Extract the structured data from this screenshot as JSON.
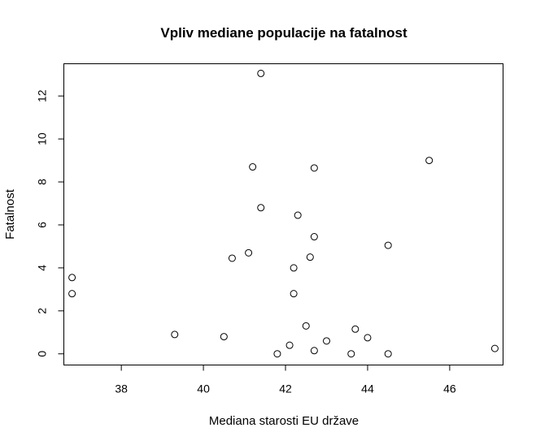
{
  "chart_data": {
    "type": "scatter",
    "title": "Vpliv mediane populacije na fatalnost",
    "xlabel": "Mediana starosti EU države",
    "ylabel": "Fatalnost",
    "xlim": [
      36.6,
      47.3
    ],
    "ylim": [
      -0.52,
      13.5
    ],
    "grid": false,
    "marker": "open-circle",
    "x_ticks": [
      38,
      40,
      42,
      44,
      46
    ],
    "y_ticks": [
      0,
      2,
      4,
      6,
      8,
      10,
      12
    ],
    "points": [
      {
        "x": 36.8,
        "y": 3.55
      },
      {
        "x": 36.8,
        "y": 2.8
      },
      {
        "x": 39.3,
        "y": 0.9
      },
      {
        "x": 40.5,
        "y": 0.8
      },
      {
        "x": 40.7,
        "y": 4.45
      },
      {
        "x": 41.1,
        "y": 4.7
      },
      {
        "x": 41.2,
        "y": 8.7
      },
      {
        "x": 41.4,
        "y": 13.05
      },
      {
        "x": 41.4,
        "y": 6.8
      },
      {
        "x": 41.8,
        "y": 0.0
      },
      {
        "x": 42.1,
        "y": 0.4
      },
      {
        "x": 42.2,
        "y": 4.0
      },
      {
        "x": 42.2,
        "y": 2.8
      },
      {
        "x": 42.3,
        "y": 6.45
      },
      {
        "x": 42.5,
        "y": 1.3
      },
      {
        "x": 42.6,
        "y": 4.5
      },
      {
        "x": 42.7,
        "y": 8.65
      },
      {
        "x": 42.7,
        "y": 5.45
      },
      {
        "x": 42.7,
        "y": 0.15
      },
      {
        "x": 43.0,
        "y": 0.6
      },
      {
        "x": 43.6,
        "y": 0.0
      },
      {
        "x": 43.7,
        "y": 1.15
      },
      {
        "x": 44.0,
        "y": 0.75
      },
      {
        "x": 44.5,
        "y": 5.05
      },
      {
        "x": 44.5,
        "y": 0.0
      },
      {
        "x": 45.5,
        "y": 9.0
      },
      {
        "x": 47.1,
        "y": 0.25
      }
    ]
  }
}
